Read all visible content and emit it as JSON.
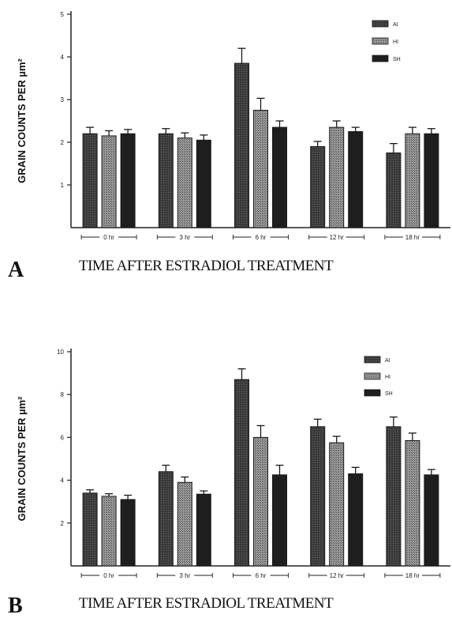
{
  "chart_data": [
    {
      "type": "bar",
      "panel_label": "A",
      "ylabel": "GRAIN COUNTS PER µm²",
      "xlabel": "TIME AFTER ESTRADIOL TREATMENT",
      "ylim": [
        0,
        5
      ],
      "yticks": [
        1,
        2,
        3,
        4,
        5
      ],
      "categories": [
        "0 hr",
        "3 hr",
        "6 hr",
        "12 hr",
        "18 hr"
      ],
      "legend_position": "top-right",
      "series": [
        {
          "name": "AI",
          "values": [
            2.2,
            2.2,
            3.85,
            1.9,
            1.75
          ],
          "errors": [
            0.15,
            0.12,
            0.35,
            0.12,
            0.22
          ],
          "color": "#3a3a3a"
        },
        {
          "name": "HI",
          "values": [
            2.15,
            2.1,
            2.75,
            2.35,
            2.2
          ],
          "errors": [
            0.12,
            0.12,
            0.28,
            0.15,
            0.15
          ],
          "color": "#8a8a8a"
        },
        {
          "name": "SH",
          "values": [
            2.2,
            2.05,
            2.35,
            2.25,
            2.2
          ],
          "errors": [
            0.1,
            0.12,
            0.15,
            0.1,
            0.12
          ],
          "color": "#1e1e1e"
        }
      ]
    },
    {
      "type": "bar",
      "panel_label": "B",
      "ylabel": "GRAIN COUNTS PER µm²",
      "xlabel": "TIME AFTER ESTRADIOL TREATMENT",
      "ylim": [
        0,
        10
      ],
      "yticks": [
        2,
        4,
        6,
        8,
        10
      ],
      "categories": [
        "0 hr",
        "3 hr",
        "6 hr",
        "12 hr",
        "18 hr"
      ],
      "legend_position": "top-right",
      "series": [
        {
          "name": "AI",
          "values": [
            3.4,
            4.4,
            8.7,
            6.5,
            6.5
          ],
          "errors": [
            0.15,
            0.3,
            0.5,
            0.35,
            0.45
          ],
          "color": "#3a3a3a"
        },
        {
          "name": "HI",
          "values": [
            3.25,
            3.9,
            6.0,
            5.75,
            5.85
          ],
          "errors": [
            0.12,
            0.25,
            0.55,
            0.3,
            0.35
          ],
          "color": "#8a8a8a"
        },
        {
          "name": "SH",
          "values": [
            3.1,
            3.35,
            4.25,
            4.3,
            4.25
          ],
          "errors": [
            0.2,
            0.15,
            0.45,
            0.3,
            0.25
          ],
          "color": "#1e1e1e"
        }
      ]
    }
  ]
}
